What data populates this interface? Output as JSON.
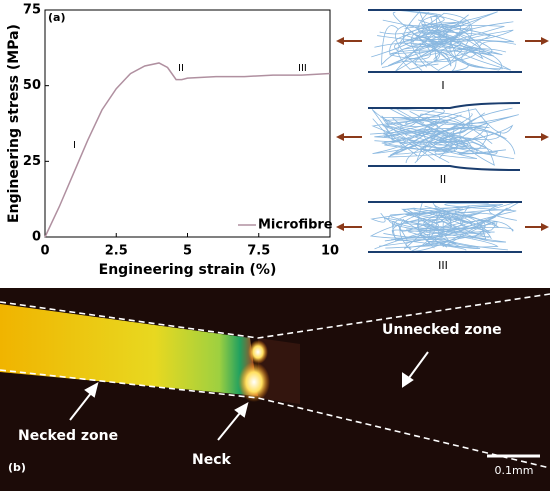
{
  "chart_data": {
    "type": "line",
    "x_label": "Engineering strain (%)",
    "y_label": "Engineering stress (MPa)",
    "x": [
      0,
      0.5,
      1,
      1.5,
      2,
      2.5,
      3,
      3.5,
      4,
      4.3,
      4.6,
      4.8,
      5,
      6,
      7,
      8,
      9,
      10
    ],
    "series": [
      {
        "name": "Microfibre",
        "color": "#b090a0",
        "values": [
          0,
          10,
          21,
          32,
          42,
          49,
          54,
          56.5,
          57.5,
          56,
          52,
          52,
          52.5,
          53,
          53,
          53.5,
          53.5,
          54
        ]
      }
    ],
    "xlim": [
      0,
      10
    ],
    "xticks": [
      0,
      2.5,
      5,
      7.5,
      10
    ],
    "ylim": [
      0,
      75
    ],
    "yticks": [
      0,
      25,
      50,
      75
    ],
    "annotations": [
      "(a)",
      "I",
      "II",
      "III"
    ],
    "legend": "lower right"
  },
  "schematic": {
    "labels": [
      "I",
      "II",
      "III"
    ]
  },
  "photo": {
    "panel": "(b)",
    "necked": "Necked zone",
    "neck": "Neck",
    "unnecked": "Unnecked zone",
    "scale": "0.1mm"
  }
}
